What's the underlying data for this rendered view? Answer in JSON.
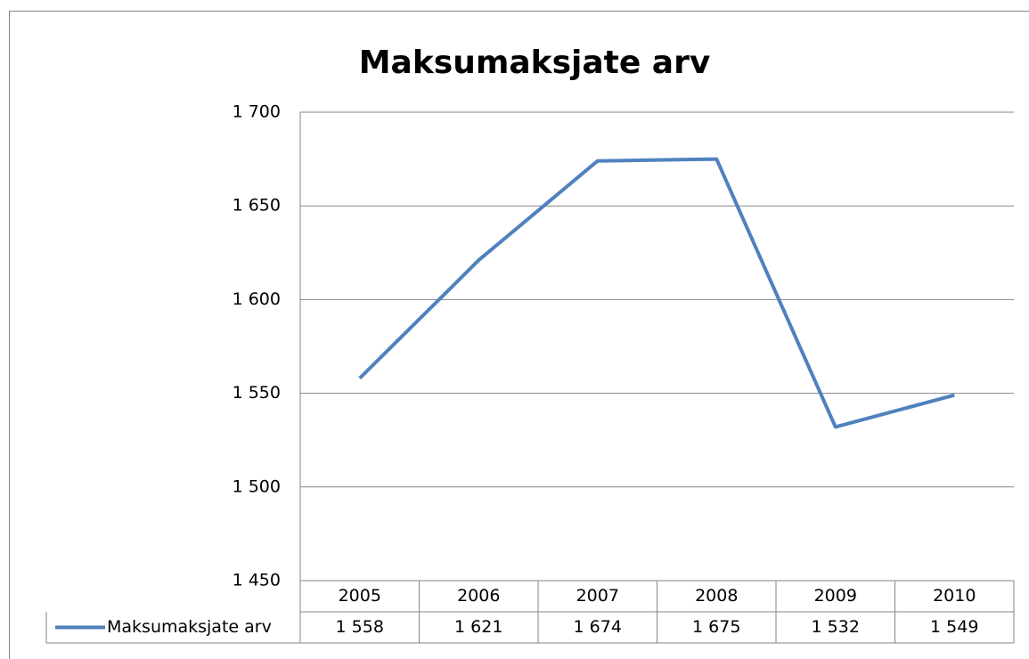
{
  "chart_data": {
    "type": "line",
    "title": "Maksumaksjate arv",
    "categories": [
      "2005",
      "2006",
      "2007",
      "2008",
      "2009",
      "2010"
    ],
    "series": [
      {
        "name": "Maksumaksjate arv",
        "color": "#4f81bd",
        "values": [
          1558,
          1621,
          1674,
          1675,
          1532,
          1549
        ],
        "value_labels": [
          "1 558",
          "1 621",
          "1 674",
          "1 675",
          "1 532",
          "1 549"
        ]
      }
    ],
    "ylim": [
      1450,
      1700
    ],
    "yticks": [
      {
        "value": 1450,
        "label": "1 450"
      },
      {
        "value": 1500,
        "label": "1 500"
      },
      {
        "value": 1550,
        "label": "1 550"
      },
      {
        "value": 1600,
        "label": "1 600"
      },
      {
        "value": 1650,
        "label": "1 650"
      },
      {
        "value": 1700,
        "label": "1 700"
      }
    ],
    "grid": true,
    "data_table": true
  }
}
